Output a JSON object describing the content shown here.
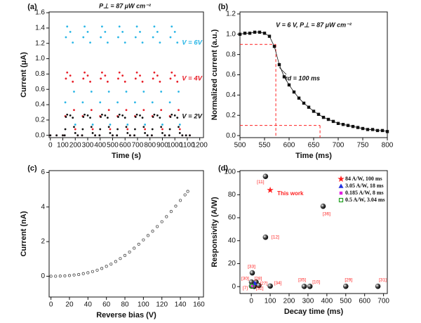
{
  "chart_data": [
    {
      "type": "scatter",
      "panel_label": "(a)",
      "x_label": "Time (s)",
      "y_label": "Current (μA)",
      "annotations": [
        {
          "text": "P⊥ = 87 μW cm⁻²"
        }
      ],
      "legend": "inline",
      "marker": "dot",
      "xlim": [
        -10,
        1230
      ],
      "ylim": [
        -0.03,
        1.61
      ],
      "xticks": [
        0,
        100,
        200,
        300,
        400,
        500,
        600,
        700,
        800,
        900,
        1000,
        1100,
        1200
      ],
      "yticks": [
        {
          "value": 0,
          "label": "0.0"
        },
        0.2,
        0.4,
        0.6,
        0.8,
        {
          "value": 1,
          "label": "1.0"
        },
        1.2,
        1.4,
        1.6
      ],
      "x": [
        0,
        50,
        100,
        115,
        120,
        125,
        135,
        160,
        180,
        190,
        200,
        220,
        255,
        260,
        265,
        275,
        300,
        320,
        330,
        340,
        360,
        395,
        400,
        405,
        415,
        440,
        460,
        470,
        480,
        500,
        535,
        540,
        545,
        555,
        580,
        600,
        610,
        620,
        640,
        675,
        680,
        685,
        695,
        720,
        740,
        750,
        760,
        780,
        815,
        820,
        825,
        835,
        860,
        880,
        890,
        900,
        920,
        955,
        960,
        965,
        975,
        1000,
        1020,
        1030,
        1040,
        1060,
        1090,
        1120
      ],
      "series": [
        {
          "name": "V = 6V",
          "color": "#29b6e6",
          "values": [
            0,
            0,
            0,
            0,
            0.43,
            1.28,
            1.42,
            1.35,
            1.21,
            0.57,
            0.14,
            0,
            0,
            0.43,
            1.28,
            1.42,
            1.35,
            1.21,
            0.57,
            0.14,
            0,
            0,
            0.43,
            1.28,
            1.42,
            1.35,
            1.21,
            0.57,
            0.14,
            0,
            0,
            0.43,
            1.28,
            1.42,
            1.35,
            1.21,
            0.57,
            0.14,
            0,
            0,
            0.43,
            1.28,
            1.42,
            1.35,
            1.21,
            0.57,
            0.14,
            0,
            0,
            0.43,
            1.28,
            1.42,
            1.35,
            1.21,
            0.57,
            0.14,
            0,
            0,
            0.43,
            1.28,
            1.42,
            1.35,
            1.21,
            0.57,
            0.14,
            0,
            0,
            0
          ]
        },
        {
          "name": "V = 4V",
          "color": "#e8202a",
          "values": [
            0,
            0,
            0,
            0,
            0.25,
            0.74,
            0.82,
            0.78,
            0.7,
            0.33,
            0.08,
            0,
            0,
            0.25,
            0.74,
            0.82,
            0.78,
            0.7,
            0.33,
            0.08,
            0,
            0,
            0.25,
            0.74,
            0.82,
            0.78,
            0.7,
            0.33,
            0.08,
            0,
            0,
            0.25,
            0.74,
            0.82,
            0.78,
            0.7,
            0.33,
            0.08,
            0,
            0,
            0.25,
            0.74,
            0.82,
            0.78,
            0.7,
            0.33,
            0.08,
            0,
            0,
            0.25,
            0.74,
            0.82,
            0.78,
            0.7,
            0.33,
            0.08,
            0,
            0,
            0.25,
            0.74,
            0.82,
            0.78,
            0.7,
            0.33,
            0.08,
            0,
            0,
            0
          ]
        },
        {
          "name": "V = 2V",
          "color": "#111111",
          "values": [
            0,
            0,
            0,
            0,
            0.08,
            0.24,
            0.27,
            0.26,
            0.23,
            0.11,
            0.03,
            0,
            0,
            0.08,
            0.24,
            0.27,
            0.26,
            0.23,
            0.11,
            0.03,
            0,
            0,
            0.08,
            0.24,
            0.27,
            0.26,
            0.23,
            0.11,
            0.03,
            0,
            0,
            0.08,
            0.24,
            0.27,
            0.26,
            0.23,
            0.11,
            0.03,
            0,
            0,
            0.08,
            0.24,
            0.27,
            0.26,
            0.23,
            0.11,
            0.03,
            0,
            0,
            0.08,
            0.24,
            0.27,
            0.26,
            0.23,
            0.11,
            0.03,
            0,
            0,
            0.08,
            0.24,
            0.27,
            0.26,
            0.23,
            0.11,
            0.03,
            0,
            0,
            0
          ]
        }
      ]
    },
    {
      "type": "line",
      "panel_label": "(b)",
      "x_label": "Time (ms)",
      "y_label": "Normalized current (a.u.)",
      "annotations": [
        {
          "text": "V = 6 V, P⊥ = 87 μW cm⁻²"
        },
        {
          "text": "τd = 100 ms"
        }
      ],
      "marker": "square",
      "xlim": [
        500,
        800
      ],
      "ylim": [
        -0.02,
        1.22
      ],
      "xticks": [
        500,
        550,
        600,
        650,
        700,
        750,
        800
      ],
      "yticks": [
        {
          "value": 0,
          "label": "0.0"
        },
        0.2,
        0.4,
        0.6,
        0.8,
        {
          "value": 1,
          "label": "1.0"
        },
        1.2
      ],
      "guides": {
        "x": [
          573,
          663
        ],
        "y": [
          0.9,
          0.1
        ],
        "color": "#ff2020"
      },
      "x": [
        500,
        510,
        520,
        530,
        540,
        550,
        560,
        570,
        580,
        590,
        600,
        610,
        620,
        630,
        640,
        650,
        660,
        670,
        680,
        690,
        700,
        710,
        720,
        730,
        740,
        750,
        760,
        770,
        780,
        790,
        800
      ],
      "series": [
        {
          "color": "#111111",
          "values": [
            1.0,
            1.01,
            1.01,
            1.02,
            1.02,
            1.01,
            0.98,
            0.88,
            0.7,
            0.58,
            0.5,
            0.43,
            0.37,
            0.32,
            0.28,
            0.24,
            0.21,
            0.18,
            0.16,
            0.14,
            0.12,
            0.11,
            0.1,
            0.09,
            0.08,
            0.07,
            0.06,
            0.06,
            0.05,
            0.05,
            0.04
          ]
        }
      ]
    },
    {
      "type": "scatter",
      "panel_label": "(c)",
      "x_label": "Reverse bias (V)",
      "y_label": "Current (nA)",
      "marker": "open-circle",
      "xlim": [
        -2,
        165
      ],
      "ylim": [
        -1.2,
        6.1
      ],
      "xticks": [
        0,
        20,
        40,
        60,
        80,
        100,
        120,
        140,
        160
      ],
      "yticks": [
        0,
        2,
        4,
        6
      ],
      "x": [
        0,
        5,
        10,
        15,
        20,
        25,
        30,
        35,
        40,
        45,
        50,
        55,
        60,
        65,
        70,
        75,
        80,
        85,
        90,
        95,
        100,
        105,
        110,
        115,
        120,
        125,
        130,
        135,
        140,
        145,
        148
      ],
      "series": [
        {
          "color": "#333333",
          "values": [
            0,
            0,
            0.01,
            0.02,
            0.04,
            0.07,
            0.1,
            0.15,
            0.2,
            0.27,
            0.35,
            0.45,
            0.57,
            0.7,
            0.85,
            1.02,
            1.2,
            1.4,
            1.62,
            1.85,
            2.1,
            2.35,
            2.6,
            2.87,
            3.15,
            3.44,
            3.74,
            4.05,
            4.38,
            4.7,
            4.9
          ]
        }
      ]
    },
    {
      "type": "scatter",
      "panel_label": "(d)",
      "x_label": "Decay time (ms)",
      "y_label": "Responsivity (A/W)",
      "legend": "upper right",
      "xlim": [
        -60,
        720
      ],
      "ylim": [
        -6,
        101
      ],
      "xticks": [
        0,
        100,
        200,
        300,
        400,
        500,
        600,
        700
      ],
      "yticks": [
        0,
        20,
        40,
        60,
        80,
        100
      ],
      "series": [
        {
          "color": "#111111",
          "marker": "sphere",
          "label_color": "#ff2020",
          "x": [
            75,
            380,
            75,
            5,
            1,
            25,
            40,
            1,
            15,
            100,
            280,
            310,
            500,
            670
          ],
          "values": [
            96,
            70,
            43,
            12,
            4,
            4,
            1,
            0.5,
            0.2,
            0.5,
            0.2,
            0.2,
            0.3,
            0.3
          ],
          "point_labels": [
            "[11]",
            "[36]",
            "[12]",
            "[33]",
            "[30]",
            "[28]",
            "[27]",
            "[7]",
            "[32]",
            "[34]",
            "[35]",
            "[10]",
            "[29]",
            "[31]"
          ]
        },
        {
          "name": "84 A/W, 100 ms",
          "label": "This work",
          "color": "#ff2020",
          "marker": "star",
          "x": [
            100
          ],
          "values": [
            84
          ]
        },
        {
          "name": "3.05 A/W, 18 ms",
          "color": "#2030e0",
          "marker": "triangle",
          "x": [
            18
          ],
          "values": [
            3.05
          ]
        },
        {
          "name": "0.185 A/W, 8 ms",
          "color": "#e020e0",
          "marker": "square",
          "x": [
            8
          ],
          "values": [
            0.185
          ]
        },
        {
          "name": "0.5 A/W, 3.04 ms",
          "color": "#20a020",
          "marker": "open-square",
          "x": [
            3.04
          ],
          "values": [
            0.5
          ]
        }
      ]
    }
  ]
}
